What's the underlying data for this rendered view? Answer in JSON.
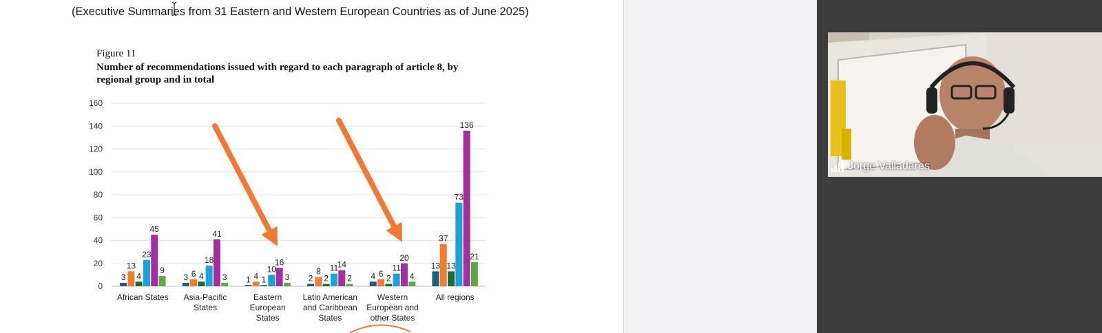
{
  "document": {
    "intro_text": "(Executive Summaries from 31 Eastern and Western European Countries as of June 2025)",
    "figure_label": "Figure 11",
    "figure_title": "Number of recommendations issued with regard to each paragraph of article 8, by regional group and in total"
  },
  "chart_data": {
    "type": "bar",
    "title": "Number of recommendations issued with regard to each paragraph of article 8, by regional group and in total",
    "categories": [
      "African States",
      "Asia-Pacific States",
      "Eastern European States",
      "Latin American and Caribbean States",
      "Western European and other States",
      "All regions"
    ],
    "category_lines": [
      [
        "African States"
      ],
      [
        "Asia-Pacific",
        "States"
      ],
      [
        "Eastern",
        "European",
        "States"
      ],
      [
        "Latin American",
        "and Caribbean",
        "States"
      ],
      [
        "Western",
        "European and",
        "other States"
      ],
      [
        "All regions"
      ]
    ],
    "series": [
      {
        "color": "#1f5f7a",
        "values": [
          3,
          3,
          1,
          2,
          4,
          13
        ]
      },
      {
        "color": "#ee7d31",
        "values": [
          13,
          6,
          4,
          8,
          6,
          37
        ]
      },
      {
        "color": "#1d6b36",
        "values": [
          4,
          4,
          1,
          2,
          2,
          13
        ]
      },
      {
        "color": "#1aa2db",
        "values": [
          23,
          18,
          10,
          11,
          11,
          73
        ]
      },
      {
        "color": "#a12fa1",
        "values": [
          45,
          41,
          16,
          14,
          20,
          136
        ]
      },
      {
        "color": "#5aab46",
        "values": [
          9,
          3,
          3,
          2,
          4,
          21
        ]
      }
    ],
    "data_labels": [
      [
        "3",
        "13",
        "4",
        "23",
        "45",
        "9"
      ],
      [
        "3",
        "6",
        "4",
        "18",
        "41",
        "3"
      ],
      [
        "1",
        "4",
        "1",
        "10",
        "16",
        "3"
      ],
      [
        "2",
        "8",
        "2",
        "11",
        "14",
        "2"
      ],
      [
        "4",
        "6",
        "2",
        "11",
        "20",
        "4"
      ],
      [
        "13",
        "37",
        "13",
        "73",
        "136",
        "21"
      ]
    ],
    "yticks": [
      0,
      20,
      40,
      60,
      80,
      100,
      120,
      140,
      160
    ],
    "ylim": [
      0,
      160
    ],
    "grid": true,
    "annotations": [
      "orange arrow pointing to Eastern European States",
      "orange arrow pointing to Western European and other States"
    ]
  },
  "video_tile": {
    "participant_name": "Jorge Valladares",
    "icon": "signal-bars-icon"
  },
  "colors": {
    "annotation_orange": "#ef7a35",
    "panel_bg": "#3c3c3c",
    "gap_bg": "#f2f1f3"
  }
}
